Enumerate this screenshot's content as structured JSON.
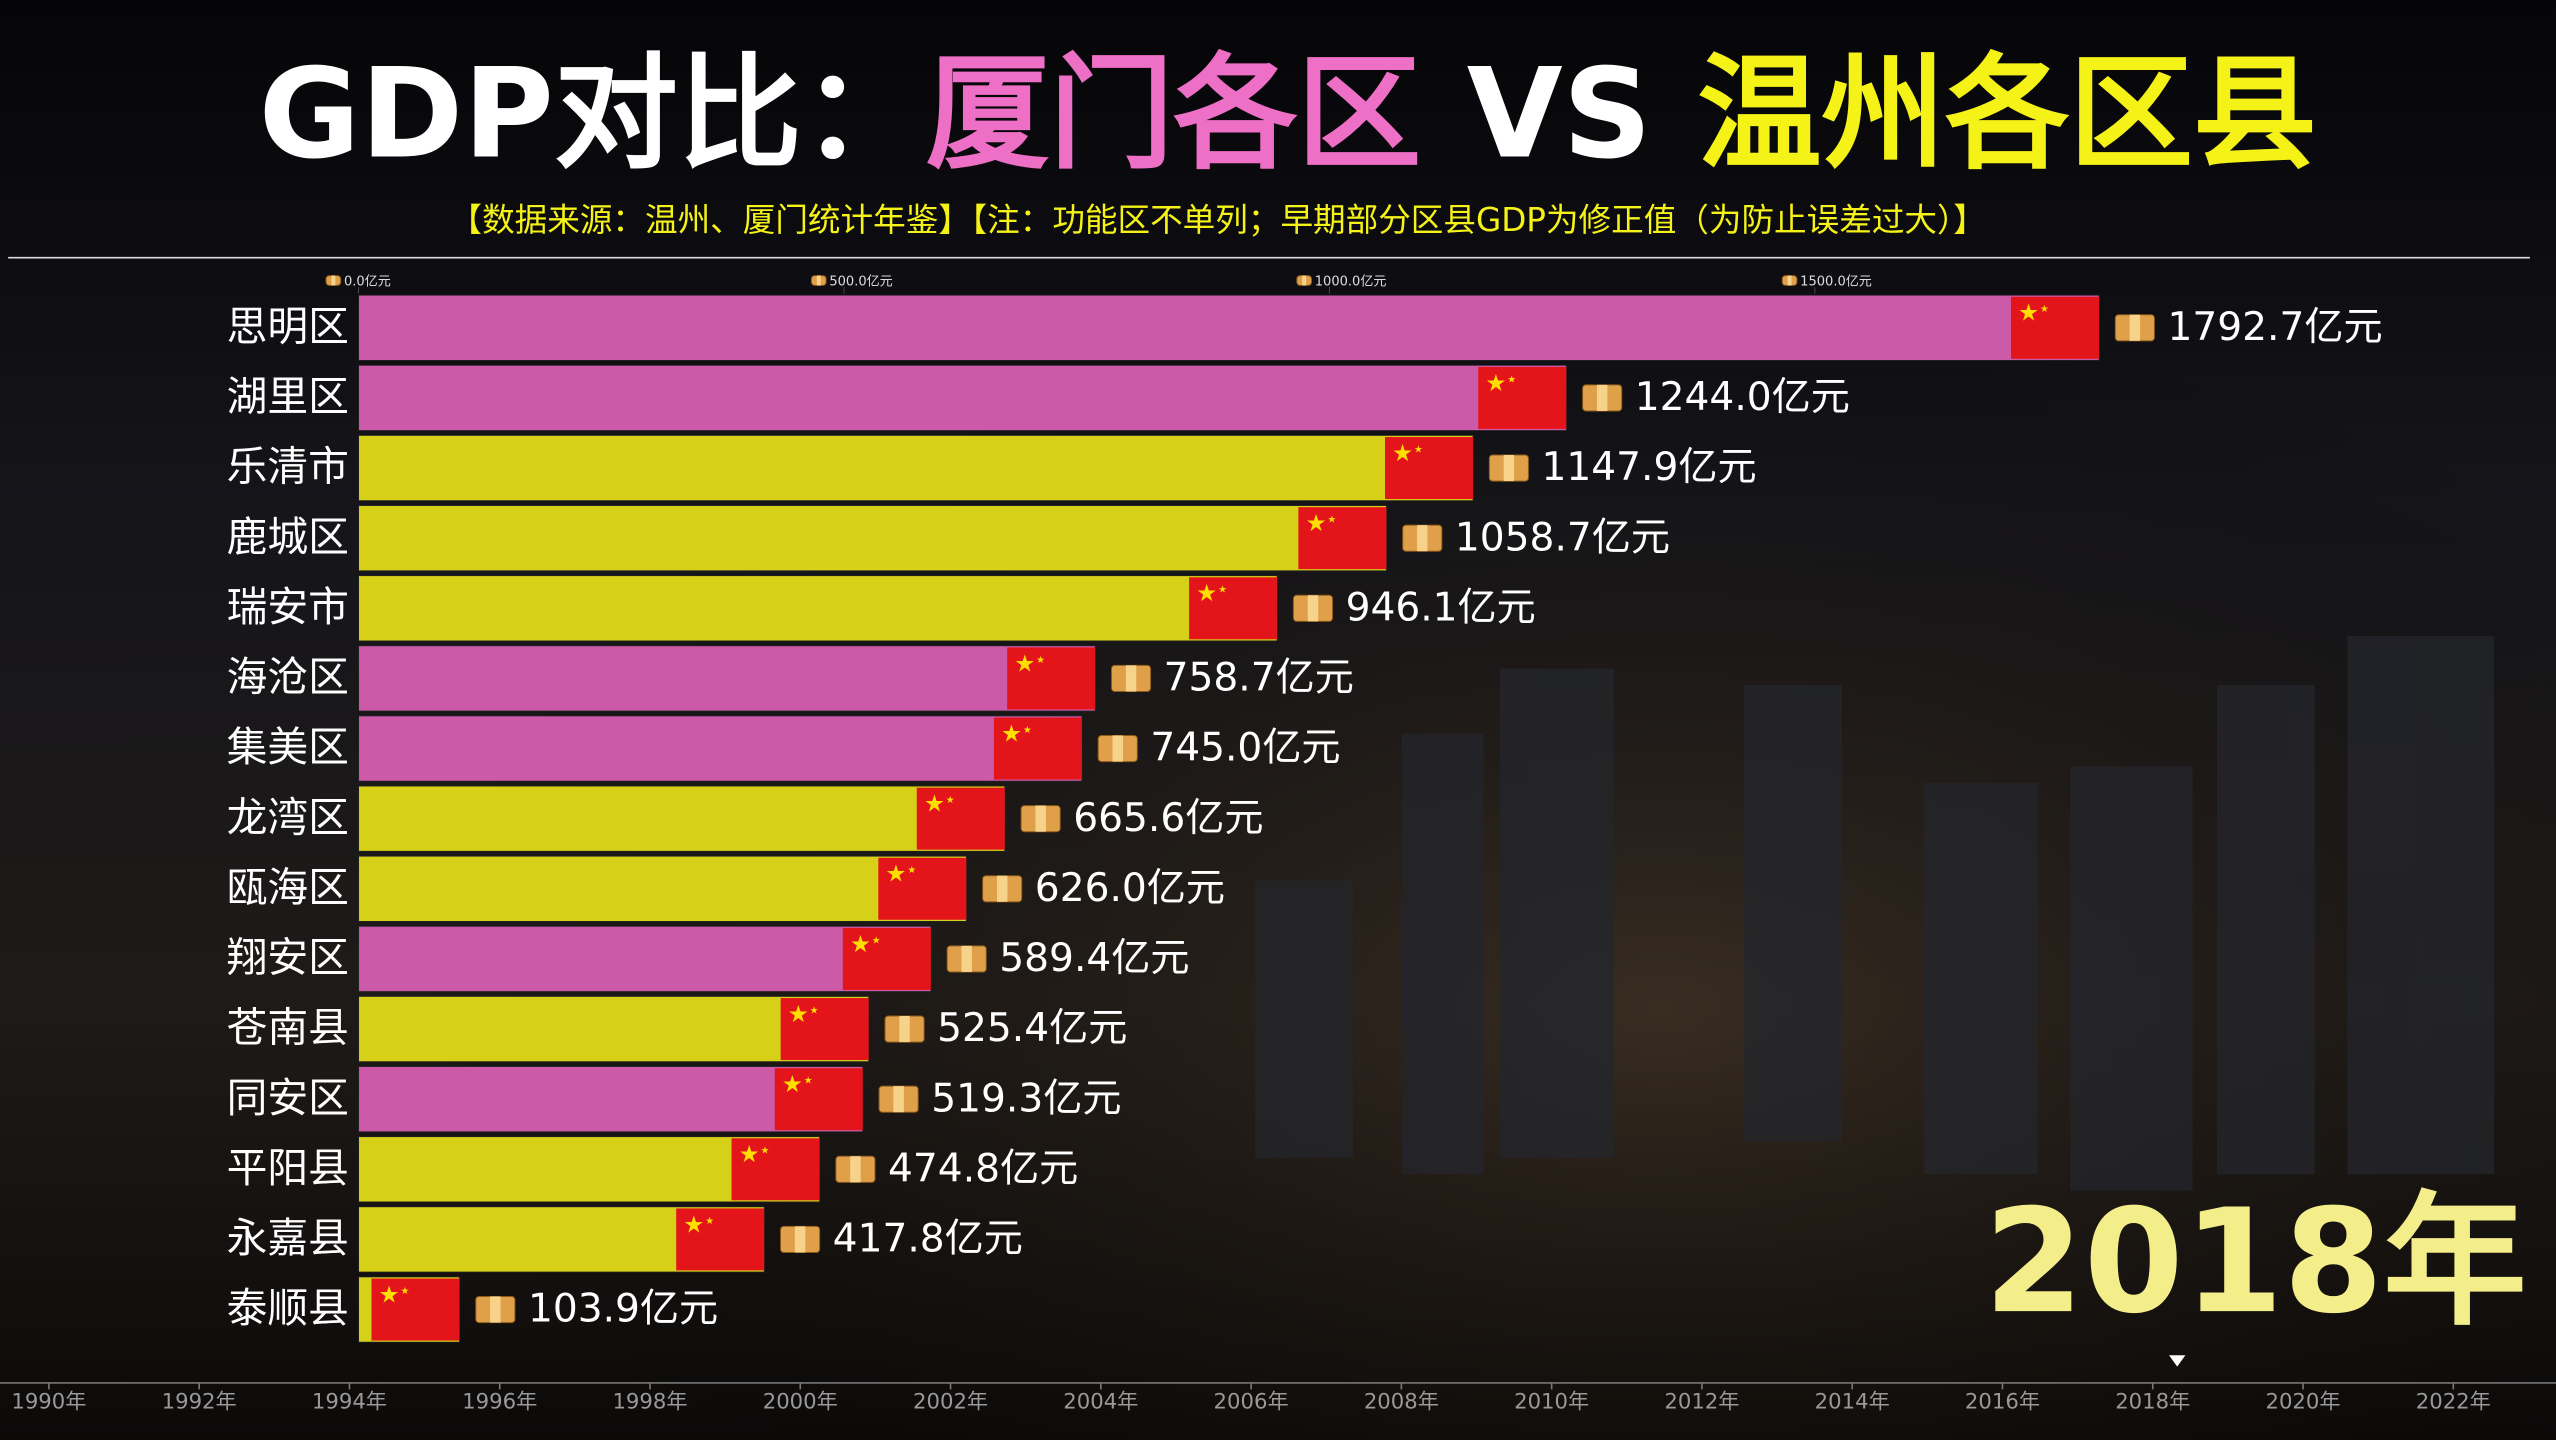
{
  "chart_data": {
    "type": "bar",
    "orientation": "horizontal",
    "title_parts": [
      "GDP对比：",
      "厦门各区",
      "VS",
      "温州各区县"
    ],
    "title_colors": [
      "#ffffff",
      "#ee6fc6",
      "#ffffff",
      "#f5f218"
    ],
    "subtitle": "【数据来源：温州、厦门统计年鉴】【注：功能区不单列；早期部分区县GDP为修正值（为防止误差过大）】",
    "categories": [
      "思明区",
      "湖里区",
      "乐清市",
      "鹿城区",
      "瑞安市",
      "海沧区",
      "集美区",
      "龙湾区",
      "瓯海区",
      "翔安区",
      "苍南县",
      "同安区",
      "平阳县",
      "永嘉县",
      "泰顺县"
    ],
    "values": [
      1792.7,
      1244.0,
      1147.9,
      1058.7,
      946.1,
      758.7,
      745.0,
      665.6,
      626.0,
      589.4,
      525.4,
      519.3,
      474.8,
      417.8,
      103.9
    ],
    "value_labels": [
      "1792.7亿元",
      "1244.0亿元",
      "1147.9亿元",
      "1058.7亿元",
      "946.1亿元",
      "758.7亿元",
      "745.0亿元",
      "665.6亿元",
      "626.0亿元",
      "589.4亿元",
      "525.4亿元",
      "519.3亿元",
      "474.8亿元",
      "417.8亿元",
      "103.9亿元"
    ],
    "colors": [
      "#cc5aa8",
      "#cc5aa8",
      "#d6d018",
      "#d6d018",
      "#d6d018",
      "#cc5aa8",
      "#cc5aa8",
      "#d6d018",
      "#d6d018",
      "#cc5aa8",
      "#d6d018",
      "#cc5aa8",
      "#d6d018",
      "#d6d018",
      "#d6d018"
    ],
    "xlim": [
      0,
      1800
    ],
    "xticks": [
      {
        "value": 0,
        "label": "0.0亿元"
      },
      {
        "value": 500,
        "label": "500.0亿元"
      },
      {
        "value": 1000,
        "label": "1000.0亿元"
      },
      {
        "value": 1500,
        "label": "1500.0亿元"
      }
    ],
    "timeline": [
      "1990年",
      "1992年",
      "1994年",
      "1996年",
      "1998年",
      "2000年",
      "2002年",
      "2004年",
      "2006年",
      "2008年",
      "2010年",
      "2012年",
      "2014年",
      "2016年",
      "2018年",
      "2020年",
      "2022年"
    ],
    "year_label": "2018年"
  }
}
